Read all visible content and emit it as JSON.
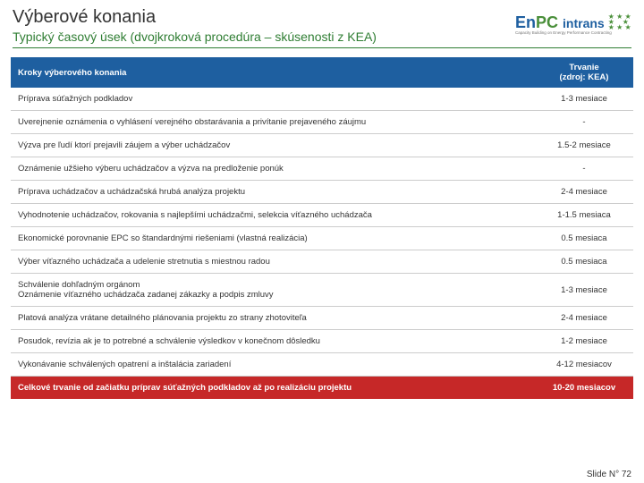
{
  "header": {
    "title": "Výberové konania",
    "subtitle": "Typický časový úsek (dvojkroková procedúra – skúsenosti z KEA)"
  },
  "logo": {
    "pre": "En",
    "mid": "PC",
    "suf": "intrans",
    "sub": "Capacity Building on Energy Performance Contracting"
  },
  "table": {
    "header_col1": "Kroky výberového konania",
    "header_col2_l1": "Trvanie",
    "header_col2_l2": "(zdroj: KEA)",
    "rows": [
      {
        "step": "Príprava súťažných podkladov",
        "dur": "1-3 mesiace"
      },
      {
        "step": "Uverejnenie oznámenia o vyhlásení verejného obstarávania a privítanie prejaveného záujmu",
        "dur": "-"
      },
      {
        "step": "Výzva pre ľudí ktorí prejavili záujem a výber uchádzačov",
        "dur": "1.5-2 mesiace"
      },
      {
        "step": "Oznámenie užšieho výberu uchádzačov a výzva na predloženie ponúk",
        "dur": "-"
      },
      {
        "step": "Príprava uchádzačov a uchádzačská hrubá analýza projektu",
        "dur": "2-4 mesiace"
      },
      {
        "step": "Vyhodnotenie uchádzačov, rokovania s najlepšími uchádzačmi, selekcia víťazného uchádzača",
        "dur": "1-1.5 mesiaca"
      },
      {
        "step": "Ekonomické porovnanie EPC so štandardnými riešeniami (vlastná realizácia)",
        "dur": "0.5 mesiaca"
      },
      {
        "step": "Výber víťazného uchádzača a udelenie stretnutia s miestnou radou",
        "dur": "0.5 mesiaca"
      },
      {
        "step": "Schválenie dohľadným orgánom\nOznámenie víťazného uchádzača zadanej zákazky a podpis zmluvy",
        "dur": "1-3 mesiace"
      },
      {
        "step": "Platová analýza vrátane detailného plánovania projektu zo strany zhotoviteľa",
        "dur": "2-4 mesiace"
      },
      {
        "step": "Posudok, revízia ak je to potrebné a schválenie výsledkov v konečnom dôsledku",
        "dur": "1-2 mesiace"
      },
      {
        "step": "Vykonávanie schválených opatrení a inštalácia zariadení",
        "dur": "4-12 mesiacov"
      }
    ],
    "total": {
      "step": "Celkové trvanie od začiatku príprav súťažných podkladov až po realizáciu projektu",
      "dur": "10-20 mesiacov"
    }
  },
  "footer": {
    "slide": "Slide N° 72"
  }
}
